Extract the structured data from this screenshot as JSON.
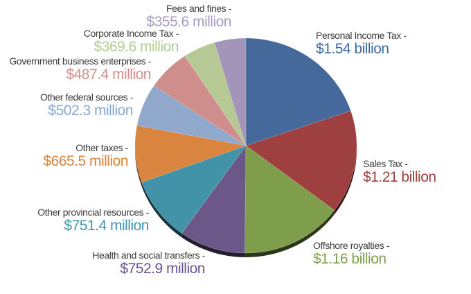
{
  "chart_data": {
    "type": "pie",
    "title": "",
    "start_angle": "12 o'clock, clockwise",
    "style": "3D tilted pie",
    "legend": "none; callout labels",
    "slices": [
      {
        "label": "Personal Income Tax -",
        "value_text": "$1.54 billion",
        "value": 1540,
        "color": "#44699a",
        "text_color": "#3d6aa0"
      },
      {
        "label": "Sales Tax -",
        "value_text": "$1.21 billion",
        "value": 1210,
        "color": "#9e4040",
        "text_color": "#a0403d"
      },
      {
        "label": "Offshore royalties -",
        "value_text": "$1.16 billion",
        "value": 1160,
        "color": "#7f9e4b",
        "text_color": "#7fa04a"
      },
      {
        "label": "Health and social transfers -",
        "value_text": "$752.9 million",
        "value": 752.9,
        "color": "#6b5788",
        "text_color": "#6a5490"
      },
      {
        "label": "Other provincial resources -",
        "value_text": "$751.4 million",
        "value": 751.4,
        "color": "#4293a8",
        "text_color": "#3f97ab"
      },
      {
        "label": "Other taxes -",
        "value_text": "$665.5 million",
        "value": 665.5,
        "color": "#d9853f",
        "text_color": "#d9843d"
      },
      {
        "label": "Other federal sources -",
        "value_text": "$502.3 million",
        "value": 502.3,
        "color": "#8fa8cb",
        "text_color": "#8aa7d0"
      },
      {
        "label": "Government business enterprises -",
        "value_text": "$487.4 million",
        "value": 487.4,
        "color": "#cf8d8b",
        "text_color": "#d28f8c"
      },
      {
        "label": "Corporate Income Tax -",
        "value_text": "$369.6 million",
        "value": 369.6,
        "color": "#b6c994",
        "text_color": "#b3cb8f"
      },
      {
        "label": "Fees and fines -",
        "value_text": "$355.6 million",
        "value": 355.6,
        "color": "#a394b9",
        "text_color": "#a99bc2"
      }
    ]
  }
}
